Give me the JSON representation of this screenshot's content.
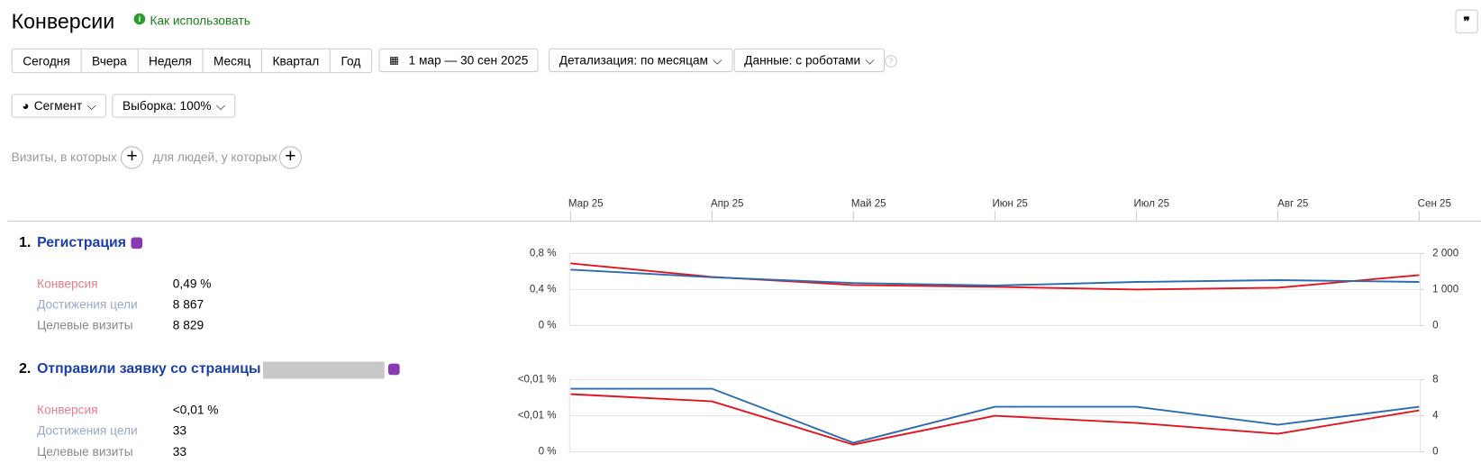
{
  "header": {
    "title": "Конверсии",
    "help": "Как использовать"
  },
  "controls": {
    "periods": [
      "Сегодня",
      "Вчера",
      "Неделя",
      "Месяц",
      "Квартал",
      "Год"
    ],
    "date_range": "1 мар — 30 сен 2025",
    "detail": "Детализация: по месяцам",
    "data_mode": "Данные: с роботами",
    "segment": "Сегмент",
    "sample": "Выборка: 100%"
  },
  "filter": {
    "visits": "Визиты, в которых",
    "people": "для людей, у которых"
  },
  "timeline": {
    "months": [
      "Мар 25",
      "Апр 25",
      "Май 25",
      "Июн 25",
      "Июл 25",
      "Авг 25",
      "Сен 25"
    ]
  },
  "goals": [
    {
      "number": "1.",
      "name": "Регистрация",
      "metrics": [
        {
          "label": "Конверсия",
          "value": "0,49 %"
        },
        {
          "label": "Достижения цели",
          "value": "8 867"
        },
        {
          "label": "Целевые визиты",
          "value": "8 829"
        }
      ],
      "chart": {
        "type": "line",
        "ylim": [
          0,
          0.8
        ],
        "yticks": [
          {
            "value": 0,
            "label": "0 %"
          },
          {
            "value": 0.4,
            "label": "0,4 %"
          },
          {
            "value": 0.8,
            "label": "0,8 %"
          }
        ],
        "y2lim": [
          0,
          2000
        ],
        "y2ticks": [
          0,
          {
            "value": 1000,
            "label": "1 000"
          },
          {
            "value": 2000,
            "label": "2 000"
          }
        ],
        "series": [
          {
            "color": "#e3141e",
            "values": [
              0.69,
              0.54,
              0.45,
              0.43,
              0.4,
              0.42,
              0.56
            ]
          },
          {
            "color": "#2a6cb0",
            "axis": "y2",
            "values": [
              1550,
              1340,
              1180,
              1110,
              1210,
              1260,
              1210
            ]
          }
        ]
      }
    },
    {
      "number": "2.",
      "name": "Отправили заявку со страницы",
      "metrics": [
        {
          "label": "Конверсия",
          "value": "<0,01 %"
        },
        {
          "label": "Достижения цели",
          "value": "33"
        },
        {
          "label": "Целевые визиты",
          "value": "33"
        }
      ],
      "chart": {
        "type": "line",
        "ylim": [
          0,
          0.004
        ],
        "yticks": [
          {
            "value": 0,
            "label": "0 %"
          },
          {
            "value": 0.002,
            "label": "<0,01 %"
          },
          {
            "value": 0.004,
            "label": "<0,01 %"
          }
        ],
        "y2lim": [
          0,
          8
        ],
        "y2ticks": [
          0,
          4,
          8
        ],
        "series": [
          {
            "color": "#e3141e",
            "values": [
              0.0032,
              0.0028,
              0.0004,
              0.002,
              0.0016,
              0.001,
              0.0023
            ]
          },
          {
            "color": "#2a6cb0",
            "axis": "y2",
            "values": [
              7,
              7,
              1,
              5,
              5,
              3,
              5
            ]
          }
        ]
      }
    }
  ]
}
